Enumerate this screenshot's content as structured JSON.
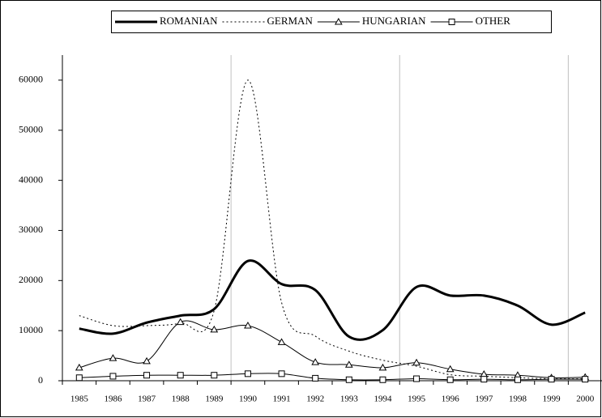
{
  "chart_data": {
    "type": "line",
    "categories": [
      "1985",
      "1986",
      "1987",
      "1988",
      "1989",
      "1990",
      "1991",
      "1992",
      "1993",
      "1994",
      "1995",
      "1996",
      "1997",
      "1998",
      "1999",
      "2000"
    ],
    "series": [
      {
        "name": "ROMANIAN",
        "color": "#000000",
        "line_width": 3,
        "dash": "solid",
        "marker": "none",
        "values": [
          10400,
          9400,
          11600,
          13000,
          14300,
          23900,
          19300,
          18100,
          8800,
          10100,
          18700,
          17000,
          17000,
          15000,
          11200,
          13600
        ]
      },
      {
        "name": "GERMAN",
        "color": "#000000",
        "line_width": 1,
        "dash": "dotted",
        "marker": "none",
        "values": [
          13000,
          11000,
          11000,
          11500,
          14000,
          60000,
          15600,
          8900,
          5900,
          4100,
          2900,
          1200,
          900,
          600,
          400,
          400
        ]
      },
      {
        "name": "HUNGARIAN",
        "color": "#000000",
        "line_width": 1,
        "dash": "solid",
        "marker": "triangle",
        "values": [
          2600,
          4500,
          3900,
          11700,
          10200,
          11000,
          7700,
          3700,
          3200,
          2600,
          3600,
          2300,
          1300,
          1100,
          600,
          700
        ]
      },
      {
        "name": "OTHER",
        "color": "#000000",
        "line_width": 1,
        "dash": "solid",
        "marker": "square",
        "values": [
          600,
          900,
          1100,
          1100,
          1100,
          1400,
          1400,
          500,
          200,
          200,
          400,
          200,
          300,
          200,
          300,
          300
        ]
      }
    ],
    "ylim": [
      0,
      65000
    ],
    "yticks": [
      0,
      10000,
      20000,
      30000,
      40000,
      50000,
      60000
    ],
    "grid": true,
    "legend": "top"
  }
}
